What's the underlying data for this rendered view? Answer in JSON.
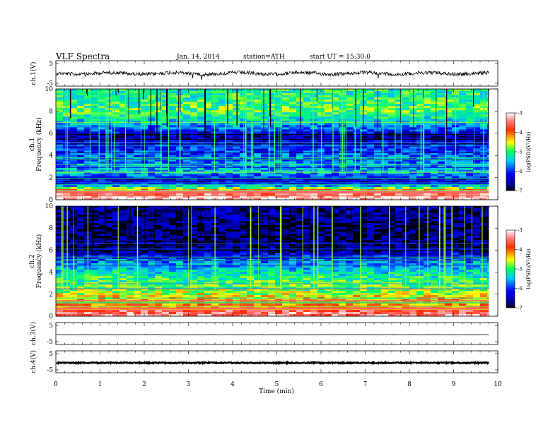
{
  "header": {
    "title": "VLF  Spectra",
    "date": "Jan. 14, 2014",
    "station": "station=ATH",
    "start": "start  UT  =   15:30:0"
  },
  "chart_data": [
    {
      "type": "line",
      "panel": "ch1",
      "ylabel": "ch.1(V)",
      "ylim": [
        -5,
        5
      ],
      "yticks": [
        "5",
        "-5"
      ],
      "xlim": [
        0,
        10
      ],
      "baseline": 0,
      "description_values": {
        "mean_level_V": 0.0,
        "noise_amplitude_V": 1.0
      },
      "color": "#000000"
    },
    {
      "type": "heatmap",
      "panel": "ch1-spectrogram",
      "ylabel_lines": [
        "ch.1",
        "Frequency  (kHz)"
      ],
      "ylim": [
        0,
        10
      ],
      "yticks": [
        "0",
        "2",
        "4",
        "6",
        "8",
        "10"
      ],
      "xlim": [
        0,
        10
      ],
      "colorbar": {
        "label": "log(PSD)(V²/Hz)",
        "range": [
          -7,
          -3
        ],
        "ticks": [
          "-3",
          "-4",
          "-5",
          "-6",
          "-7"
        ]
      },
      "profile_log_psd": [
        {
          "f_khz": 0.3,
          "v": -3.2
        },
        {
          "f_khz": 0.8,
          "v": -4.0
        },
        {
          "f_khz": 1.5,
          "v": -6.5
        },
        {
          "f_khz": 2.5,
          "v": -5.6
        },
        {
          "f_khz": 4.0,
          "v": -5.9
        },
        {
          "f_khz": 5.8,
          "v": -6.6
        },
        {
          "f_khz": 6.5,
          "v": -5.8
        },
        {
          "f_khz": 8.0,
          "v": -5.0
        },
        {
          "f_khz": 9.5,
          "v": -5.2
        }
      ]
    },
    {
      "type": "heatmap",
      "panel": "ch2-spectrogram",
      "ylabel_lines": [
        "ch.2",
        "Frequency  (kHz)"
      ],
      "ylim": [
        0,
        10
      ],
      "yticks": [
        "0",
        "2",
        "4",
        "6",
        "8",
        "10"
      ],
      "xlim": [
        0,
        10
      ],
      "colorbar": {
        "label": "log(PSD)(V²/Hz)",
        "range": [
          -7,
          -3
        ],
        "ticks": [
          "-3",
          "-4",
          "-5",
          "-6",
          "-7"
        ]
      },
      "profile_log_psd": [
        {
          "f_khz": 0.3,
          "v": -3.5
        },
        {
          "f_khz": 1.0,
          "v": -4.2
        },
        {
          "f_khz": 2.2,
          "v": -4.8
        },
        {
          "f_khz": 3.5,
          "v": -5.2
        },
        {
          "f_khz": 5.0,
          "v": -5.8
        },
        {
          "f_khz": 6.0,
          "v": -6.7
        },
        {
          "f_khz": 8.0,
          "v": -6.8
        },
        {
          "f_khz": 9.5,
          "v": -6.6
        }
      ]
    },
    {
      "type": "line",
      "panel": "ch3",
      "ylabel": "ch.3(V)",
      "ylim": [
        -5,
        5
      ],
      "yticks": [
        "5",
        "-5"
      ],
      "xlim": [
        0,
        10
      ],
      "baseline": -0.5,
      "color": "#000000"
    },
    {
      "type": "line",
      "panel": "ch4",
      "ylabel": "ch.4(V)",
      "ylim": [
        -5,
        5
      ],
      "yticks": [
        "5",
        "-5"
      ],
      "xlim": [
        0,
        10
      ],
      "baseline": -0.5,
      "color": "#000000"
    }
  ],
  "xaxis": {
    "label": "Time  (min)",
    "ticks": [
      "0",
      "1",
      "2",
      "3",
      "4",
      "5",
      "6",
      "7",
      "8",
      "9",
      "10"
    ],
    "data_end_min": 9.8
  }
}
